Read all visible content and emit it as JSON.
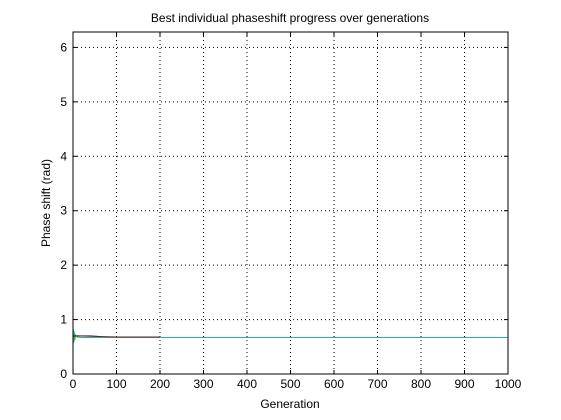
{
  "chart_data": {
    "type": "line",
    "title": "Best individual phaseshift progress over generations",
    "xlabel": "Generation",
    "ylabel": "Phase shift (rad)",
    "xlim": [
      0,
      1000
    ],
    "ylim": [
      0,
      6.2832
    ],
    "xticks": [
      0,
      100,
      200,
      300,
      400,
      500,
      600,
      700,
      800,
      900,
      1000
    ],
    "yticks": [
      0,
      1,
      2,
      3,
      4,
      5,
      6
    ],
    "grid": true,
    "grid_style": "dotted",
    "legend": "none",
    "series": [
      {
        "color": "#1fb5a6",
        "x": [
          0,
          1,
          2,
          3,
          4,
          6,
          10,
          20,
          200,
          1000
        ],
        "y": [
          0.6,
          0.82,
          0.58,
          0.78,
          0.62,
          0.72,
          0.68,
          0.67,
          0.67,
          0.67
        ]
      },
      {
        "color": "#3cc24a",
        "x": [
          0,
          1,
          2,
          3,
          4,
          5,
          7
        ],
        "y": [
          0.66,
          0.8,
          0.6,
          0.74,
          0.63,
          0.7,
          0.67
        ]
      },
      {
        "color": "#1f2a8a",
        "x": [
          0,
          20,
          40,
          60
        ],
        "y": [
          0.7,
          0.7,
          0.7,
          0.69
        ]
      },
      {
        "color": "#7a1f1f",
        "x": [
          0,
          10,
          60,
          100,
          150,
          200
        ],
        "y": [
          0.69,
          0.7,
          0.69,
          0.68,
          0.68,
          0.68
        ]
      }
    ]
  }
}
